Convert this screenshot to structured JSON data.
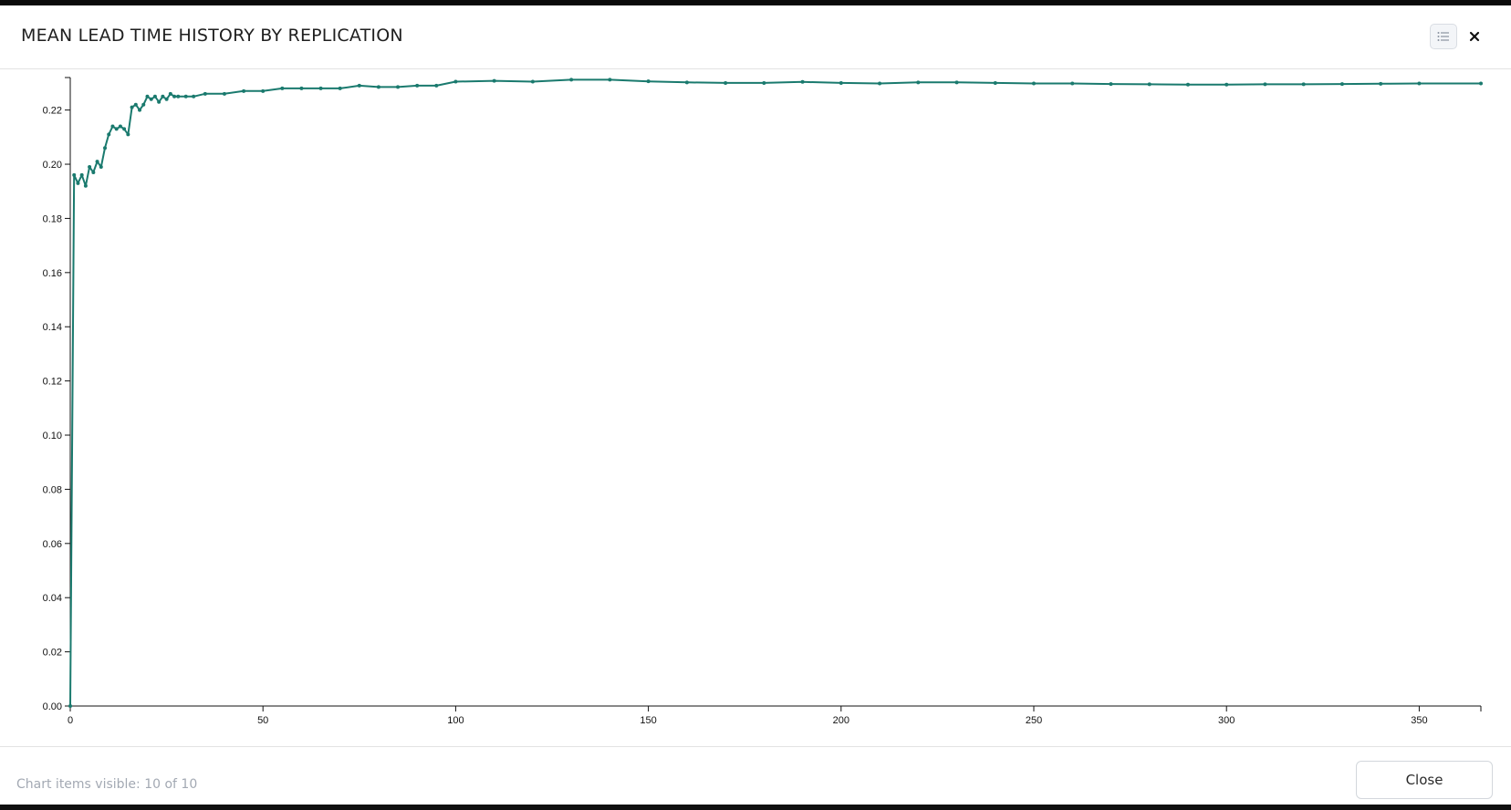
{
  "modal": {
    "title": "MEAN LEAD TIME HISTORY BY REPLICATION",
    "legend_button_icon": "list-icon",
    "close_icon": "close-icon"
  },
  "footer": {
    "status_text": "Chart items visible: 10 of 10",
    "close_label": "Close"
  },
  "colors": {
    "series": "#1a7a6e",
    "axis": "#111111"
  },
  "chart_data": {
    "type": "line",
    "xlim": [
      0,
      366
    ],
    "ylim": [
      0,
      0.232
    ],
    "x_ticks": [
      0,
      50,
      100,
      150,
      200,
      250,
      300,
      350
    ],
    "x_tick_labels": [
      "0",
      "50",
      "100",
      "150",
      "200",
      "250",
      "300",
      "350"
    ],
    "y_ticks": [
      0.0,
      0.02,
      0.04,
      0.06,
      0.08,
      0.1,
      0.12,
      0.14,
      0.16,
      0.18,
      0.2,
      0.22
    ],
    "y_tick_labels": [
      "0.00",
      "0.02",
      "0.04",
      "0.06",
      "0.08",
      "0.10",
      "0.12",
      "0.14",
      "0.16",
      "0.18",
      "0.20",
      "0.22"
    ],
    "grid": false,
    "series": [
      {
        "x": [
          0,
          1,
          2,
          3,
          4,
          5,
          6,
          7,
          8,
          9,
          10,
          11,
          12,
          13,
          14,
          15,
          16,
          17,
          18,
          19,
          20,
          21,
          22,
          23,
          24,
          25,
          26,
          27,
          28,
          30,
          32,
          35,
          40,
          45,
          50,
          55,
          60,
          65,
          70,
          75,
          80,
          85,
          90,
          95,
          100,
          110,
          120,
          130,
          140,
          150,
          160,
          170,
          180,
          190,
          200,
          210,
          220,
          230,
          240,
          250,
          260,
          270,
          280,
          290,
          300,
          310,
          320,
          330,
          340,
          350,
          366
        ],
        "y": [
          0.0,
          0.196,
          0.193,
          0.196,
          0.192,
          0.199,
          0.197,
          0.201,
          0.199,
          0.206,
          0.211,
          0.214,
          0.213,
          0.214,
          0.213,
          0.211,
          0.221,
          0.222,
          0.22,
          0.222,
          0.225,
          0.224,
          0.225,
          0.223,
          0.225,
          0.224,
          0.226,
          0.225,
          0.225,
          0.225,
          0.225,
          0.226,
          0.226,
          0.227,
          0.227,
          0.228,
          0.228,
          0.228,
          0.228,
          0.229,
          0.2285,
          0.2285,
          0.229,
          0.229,
          0.2305,
          0.2308,
          0.2305,
          0.2312,
          0.2312,
          0.2306,
          0.2302,
          0.23,
          0.23,
          0.2304,
          0.23,
          0.2298,
          0.2302,
          0.2302,
          0.23,
          0.2298,
          0.2298,
          0.2296,
          0.2295,
          0.2294,
          0.2294,
          0.2295,
          0.2295,
          0.2296,
          0.2297,
          0.2298,
          0.2298
        ]
      }
    ]
  }
}
